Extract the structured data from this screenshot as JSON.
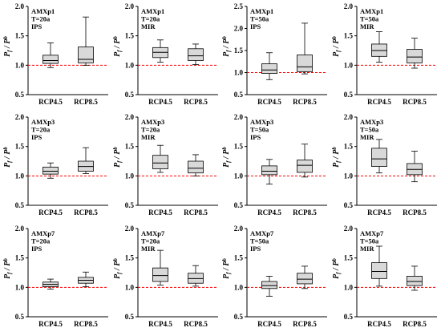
{
  "ylabel": "P_f / P^b",
  "colors": {
    "box_fill": "#d9d9d9",
    "box_stroke": "#000000",
    "reference_line": "#ff0000"
  },
  "chart_data": [
    {
      "type": "boxplot",
      "annotation": [
        "AMXp1",
        "T=20a",
        "IPS"
      ],
      "ylim": [
        0.5,
        2.0
      ],
      "yticks": [
        "0.5",
        "1.0",
        "1.5",
        "2.0"
      ],
      "reference_y": 1.0,
      "categories": [
        "RCP4.5",
        "RCP8.5"
      ],
      "boxes": [
        {
          "min": 0.96,
          "q1": 1.03,
          "median": 1.08,
          "q3": 1.17,
          "max": 1.38
        },
        {
          "min": 1.0,
          "q1": 1.04,
          "median": 1.1,
          "q3": 1.31,
          "max": 1.82
        }
      ]
    },
    {
      "type": "boxplot",
      "annotation": [
        "AMXp1",
        "T=20a",
        "MIR"
      ],
      "ylim": [
        0.5,
        2.0
      ],
      "yticks": [
        "0.5",
        "1.0",
        "1.5",
        "2.0"
      ],
      "reference_y": 1.0,
      "categories": [
        "RCP4.5",
        "RCP8.5"
      ],
      "boxes": [
        {
          "min": 1.05,
          "q1": 1.13,
          "median": 1.22,
          "q3": 1.3,
          "max": 1.43
        },
        {
          "min": 1.01,
          "q1": 1.08,
          "median": 1.16,
          "q3": 1.28,
          "max": 1.36
        }
      ]
    },
    {
      "type": "boxplot",
      "annotation": [
        "AMXp1",
        "T=50a",
        "IPS"
      ],
      "ylim": [
        0.5,
        2.5
      ],
      "yticks": [
        "0.5",
        "1.0",
        "1.5",
        "2.0",
        "2.5"
      ],
      "reference_y": 1.0,
      "categories": [
        "RCP4.5",
        "RCP8.5"
      ],
      "boxes": [
        {
          "min": 0.84,
          "q1": 0.98,
          "median": 1.06,
          "q3": 1.2,
          "max": 1.45
        },
        {
          "min": 0.97,
          "q1": 1.02,
          "median": 1.13,
          "q3": 1.4,
          "max": 2.12
        }
      ]
    },
    {
      "type": "boxplot",
      "annotation": [
        "AMXp1",
        "T=50a",
        "MIR"
      ],
      "ylim": [
        0.5,
        2.0
      ],
      "yticks": [
        "0.5",
        "1.0",
        "1.5",
        "2.0"
      ],
      "reference_y": 1.0,
      "categories": [
        "RCP4.5",
        "RCP8.5"
      ],
      "boxes": [
        {
          "min": 1.05,
          "q1": 1.15,
          "median": 1.25,
          "q3": 1.36,
          "max": 1.57
        },
        {
          "min": 0.95,
          "q1": 1.04,
          "median": 1.14,
          "q3": 1.27,
          "max": 1.46
        }
      ]
    },
    {
      "type": "boxplot",
      "annotation": [
        "AMXp3",
        "T=20a",
        "IPS"
      ],
      "ylim": [
        0.5,
        2.0
      ],
      "yticks": [
        "0.5",
        "1.0",
        "1.5",
        "2.0"
      ],
      "reference_y": 1.0,
      "categories": [
        "RCP4.5",
        "RCP8.5"
      ],
      "boxes": [
        {
          "min": 0.96,
          "q1": 1.03,
          "median": 1.08,
          "q3": 1.15,
          "max": 1.22
        },
        {
          "min": 1.04,
          "q1": 1.08,
          "median": 1.16,
          "q3": 1.25,
          "max": 1.48
        }
      ]
    },
    {
      "type": "boxplot",
      "annotation": [
        "AMXp3",
        "T=20a",
        "MIR"
      ],
      "ylim": [
        0.5,
        2.0
      ],
      "yticks": [
        "0.5",
        "1.0",
        "1.5",
        "2.0"
      ],
      "reference_y": 1.0,
      "categories": [
        "RCP4.5",
        "RCP8.5"
      ],
      "boxes": [
        {
          "min": 1.06,
          "q1": 1.12,
          "median": 1.22,
          "q3": 1.35,
          "max": 1.52
        },
        {
          "min": 1.0,
          "q1": 1.05,
          "median": 1.13,
          "q3": 1.25,
          "max": 1.36
        }
      ]
    },
    {
      "type": "boxplot",
      "annotation": [
        "AMXp3",
        "T=50a",
        "IPS"
      ],
      "ylim": [
        0.5,
        2.0
      ],
      "yticks": [
        "0.5",
        "1.0",
        "1.5",
        "2.0"
      ],
      "reference_y": 1.0,
      "categories": [
        "RCP4.5",
        "RCP8.5"
      ],
      "boxes": [
        {
          "min": 0.86,
          "q1": 1.02,
          "median": 1.08,
          "q3": 1.17,
          "max": 1.28
        },
        {
          "min": 0.98,
          "q1": 1.06,
          "median": 1.18,
          "q3": 1.27,
          "max": 1.54
        }
      ]
    },
    {
      "type": "boxplot",
      "annotation": [
        "AMXp3",
        "T=50a",
        "MIR"
      ],
      "ylim": [
        0.5,
        2.0
      ],
      "yticks": [
        "0.5",
        "1.0",
        "1.5",
        "2.0"
      ],
      "reference_y": 1.0,
      "categories": [
        "RCP4.5",
        "RCP8.5"
      ],
      "boxes": [
        {
          "min": 1.05,
          "q1": 1.16,
          "median": 1.29,
          "q3": 1.47,
          "max": 1.62
        },
        {
          "min": 0.9,
          "q1": 1.02,
          "median": 1.11,
          "q3": 1.21,
          "max": 1.42
        }
      ]
    },
    {
      "type": "boxplot",
      "annotation": [
        "AMXp7",
        "T=20a",
        "IPS"
      ],
      "ylim": [
        0.5,
        2.0
      ],
      "yticks": [
        "0.5",
        "1.0",
        "1.5",
        "2.0"
      ],
      "reference_y": 1.0,
      "categories": [
        "RCP4.5",
        "RCP8.5"
      ],
      "boxes": [
        {
          "min": 0.97,
          "q1": 1.01,
          "median": 1.05,
          "q3": 1.09,
          "max": 1.14
        },
        {
          "min": 1.01,
          "q1": 1.07,
          "median": 1.12,
          "q3": 1.17,
          "max": 1.26
        }
      ]
    },
    {
      "type": "boxplot",
      "annotation": [
        "AMXp7",
        "T=20a",
        "MIR"
      ],
      "ylim": [
        0.5,
        2.0
      ],
      "yticks": [
        "0.5",
        "1.0",
        "1.5",
        "2.0"
      ],
      "reference_y": 1.0,
      "categories": [
        "RCP4.5",
        "RCP8.5"
      ],
      "boxes": [
        {
          "min": 1.04,
          "q1": 1.1,
          "median": 1.2,
          "q3": 1.33,
          "max": 1.63
        },
        {
          "min": 1.02,
          "q1": 1.07,
          "median": 1.15,
          "q3": 1.24,
          "max": 1.37
        }
      ]
    },
    {
      "type": "boxplot",
      "annotation": [
        "AMXp7",
        "T=50a",
        "IPS"
      ],
      "ylim": [
        0.5,
        2.0
      ],
      "yticks": [
        "0.5",
        "1.0",
        "1.5",
        "2.0"
      ],
      "reference_y": 1.0,
      "categories": [
        "RCP4.5",
        "RCP8.5"
      ],
      "boxes": [
        {
          "min": 0.85,
          "q1": 0.98,
          "median": 1.03,
          "q3": 1.1,
          "max": 1.19
        },
        {
          "min": 0.98,
          "q1": 1.06,
          "median": 1.14,
          "q3": 1.24,
          "max": 1.36
        }
      ]
    },
    {
      "type": "boxplot",
      "annotation": [
        "AMXp7",
        "T=50a",
        "MIR"
      ],
      "ylim": [
        0.5,
        2.0
      ],
      "yticks": [
        "0.5",
        "1.0",
        "1.5",
        "2.0"
      ],
      "reference_y": 1.0,
      "categories": [
        "RCP4.5",
        "RCP8.5"
      ],
      "boxes": [
        {
          "min": 1.02,
          "q1": 1.15,
          "median": 1.27,
          "q3": 1.42,
          "max": 1.7
        },
        {
          "min": 0.95,
          "q1": 1.03,
          "median": 1.1,
          "q3": 1.19,
          "max": 1.36
        }
      ]
    }
  ]
}
